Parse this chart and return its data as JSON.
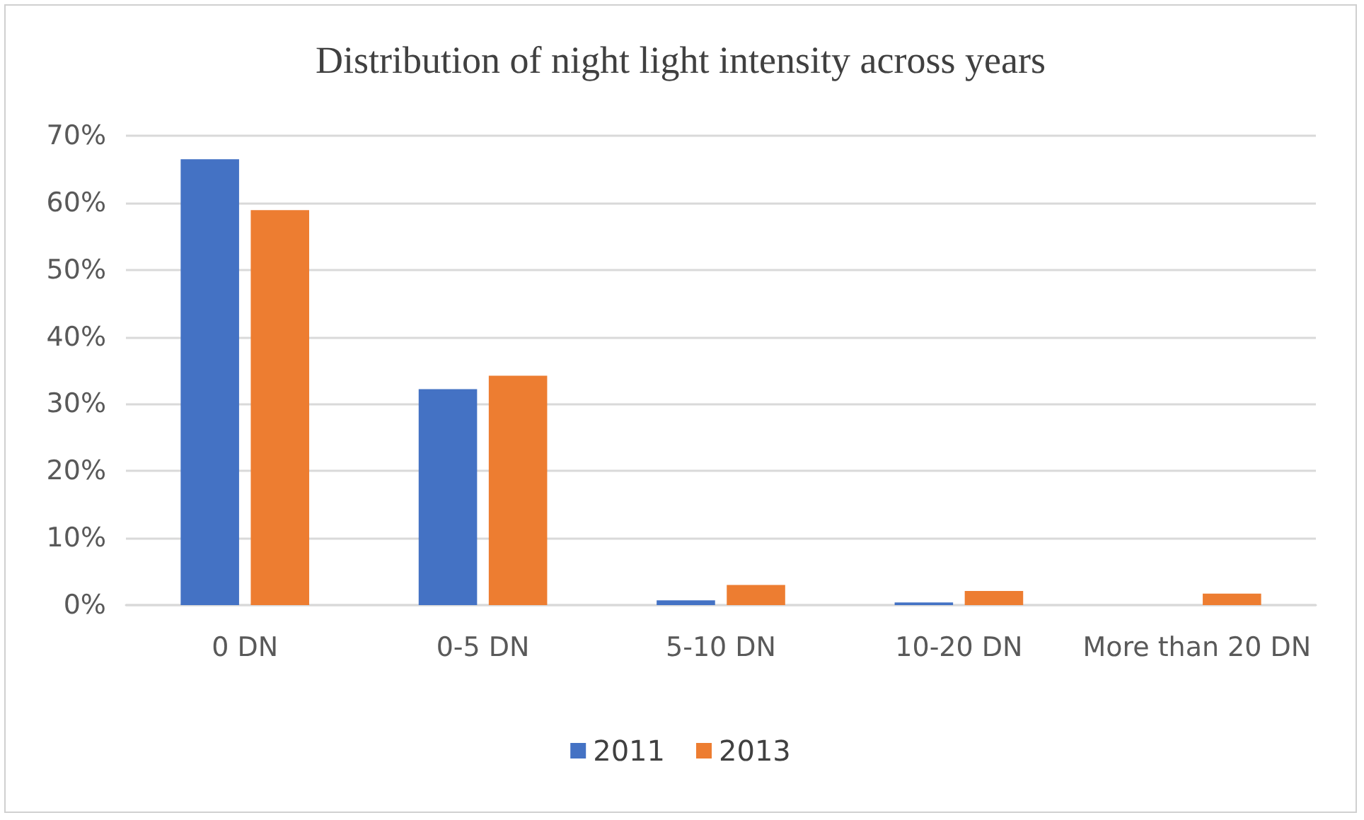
{
  "chart_data": {
    "type": "bar",
    "title": "Distribution of night light intensity across years",
    "categories": [
      "0 DN",
      "0-5 DN",
      "5-10 DN",
      "10-20 DN",
      "More than 20 DN"
    ],
    "series": [
      {
        "name": "2011",
        "color": "#4472c4",
        "values": [
          66.5,
          32.2,
          0.7,
          0.4,
          0
        ]
      },
      {
        "name": "2013",
        "color": "#ed7d31",
        "values": [
          58.9,
          34.2,
          3.0,
          2.1,
          1.7
        ]
      }
    ],
    "ylim": [
      0,
      70
    ],
    "yticks": [
      {
        "value": 0,
        "label": "0%"
      },
      {
        "value": 10,
        "label": "10%"
      },
      {
        "value": 20,
        "label": "20%"
      },
      {
        "value": 30,
        "label": "30%"
      },
      {
        "value": 40,
        "label": "40%"
      },
      {
        "value": 50,
        "label": "50%"
      },
      {
        "value": 60,
        "label": "60%"
      },
      {
        "value": 70,
        "label": "70%"
      }
    ],
    "grid": "y",
    "legend": "bottom"
  }
}
